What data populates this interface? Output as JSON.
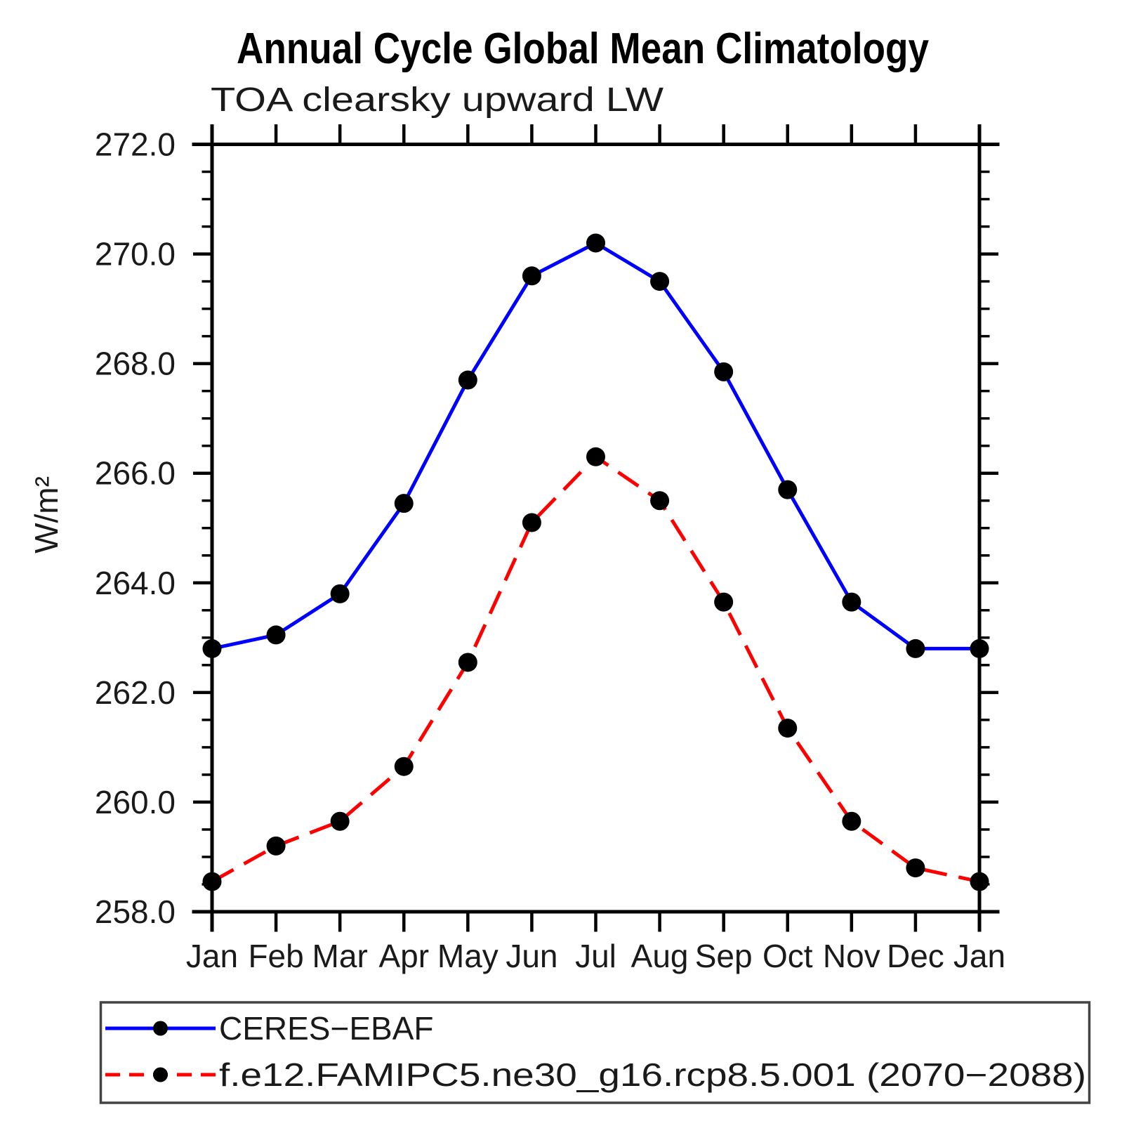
{
  "page": {
    "background_color": "#ffffff",
    "axis_color": "#000000"
  },
  "header": {
    "title": "Annual Cycle Global Mean Climatology",
    "subtitle": "TOA clearsky upward LW"
  },
  "chart_data": {
    "type": "line",
    "title": "Annual Cycle Global Mean Climatology",
    "subtitle": "TOA clearsky upward LW",
    "xlabel": "",
    "ylabel": "W/m²",
    "categories": [
      "Jan",
      "Feb",
      "Mar",
      "Apr",
      "May",
      "Jun",
      "Jul",
      "Aug",
      "Sep",
      "Oct",
      "Nov",
      "Dec",
      "Jan"
    ],
    "ylim": [
      258.0,
      272.0
    ],
    "ytick_interval": 2.0,
    "ytick_minor_interval": 0.5,
    "ytick_labels": [
      "258.0",
      "260.0",
      "262.0",
      "264.0",
      "266.0",
      "268.0",
      "270.0",
      "272.0"
    ],
    "grid": false,
    "legend_position": "bottom",
    "series": [
      {
        "name": "CERES−EBAF",
        "color": "#0000ff",
        "line_style": "solid",
        "marker": "circle",
        "marker_color": "#000000",
        "values": [
          262.8,
          263.05,
          263.8,
          265.45,
          267.7,
          269.6,
          270.2,
          269.5,
          267.85,
          265.7,
          263.65,
          262.8,
          262.8
        ]
      },
      {
        "name": "f.e12.FAMIPC5.ne30_g16.rcp8.5.001 (2070−2088)",
        "color": "#ff0000",
        "line_style": "dashed",
        "marker": "circle",
        "marker_color": "#000000",
        "values": [
          258.55,
          259.2,
          259.65,
          260.65,
          262.55,
          265.1,
          266.3,
          265.5,
          263.65,
          261.35,
          259.65,
          258.8,
          258.55
        ]
      }
    ]
  }
}
